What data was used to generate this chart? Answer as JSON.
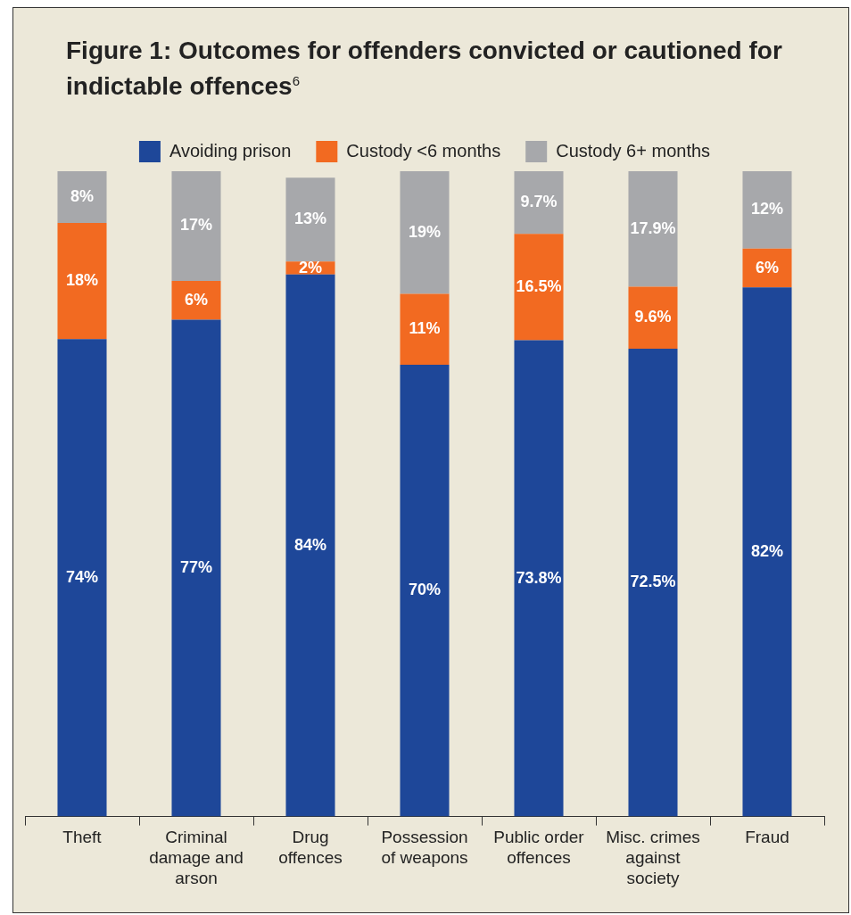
{
  "chart_data": {
    "type": "bar",
    "stacked": true,
    "title": "Figure 1: Outcomes for offenders convicted or cautioned for indictable offences$^{6}$",
    "categories": [
      "Theft",
      "Criminal damage and arson",
      "Drug offences",
      "Possession of weapons",
      "Public order offences",
      "Misc. crimes against society",
      "Fraud"
    ],
    "ylim": [
      0,
      100
    ],
    "tick_labels": "x",
    "legend": "top",
    "grid": false,
    "series": [
      {
        "name": "Avoiding prison",
        "color": "#1e4799",
        "values": [
          74,
          77,
          84,
          70,
          73.8,
          72.5,
          82
        ],
        "value_labels": [
          "74%",
          "77%",
          "84%",
          "70%",
          "73.8%",
          "72.5%",
          "82%"
        ]
      },
      {
        "name": "Custody <6 months",
        "color": "#f26a21",
        "values": [
          18,
          6,
          2,
          11,
          16.5,
          9.6,
          6
        ],
        "value_labels": [
          "18%",
          "6%",
          "2%",
          "11%",
          "16.5%",
          "9.6%",
          "6%"
        ]
      },
      {
        "name": "Custody 6+ months",
        "color": "#a7a8ab",
        "values": [
          8,
          17,
          13,
          19,
          9.7,
          17.9,
          12
        ],
        "value_labels": [
          "8%",
          "17%",
          "13%",
          "19%",
          "9.7%",
          "17.9%",
          "12%"
        ]
      }
    ]
  }
}
